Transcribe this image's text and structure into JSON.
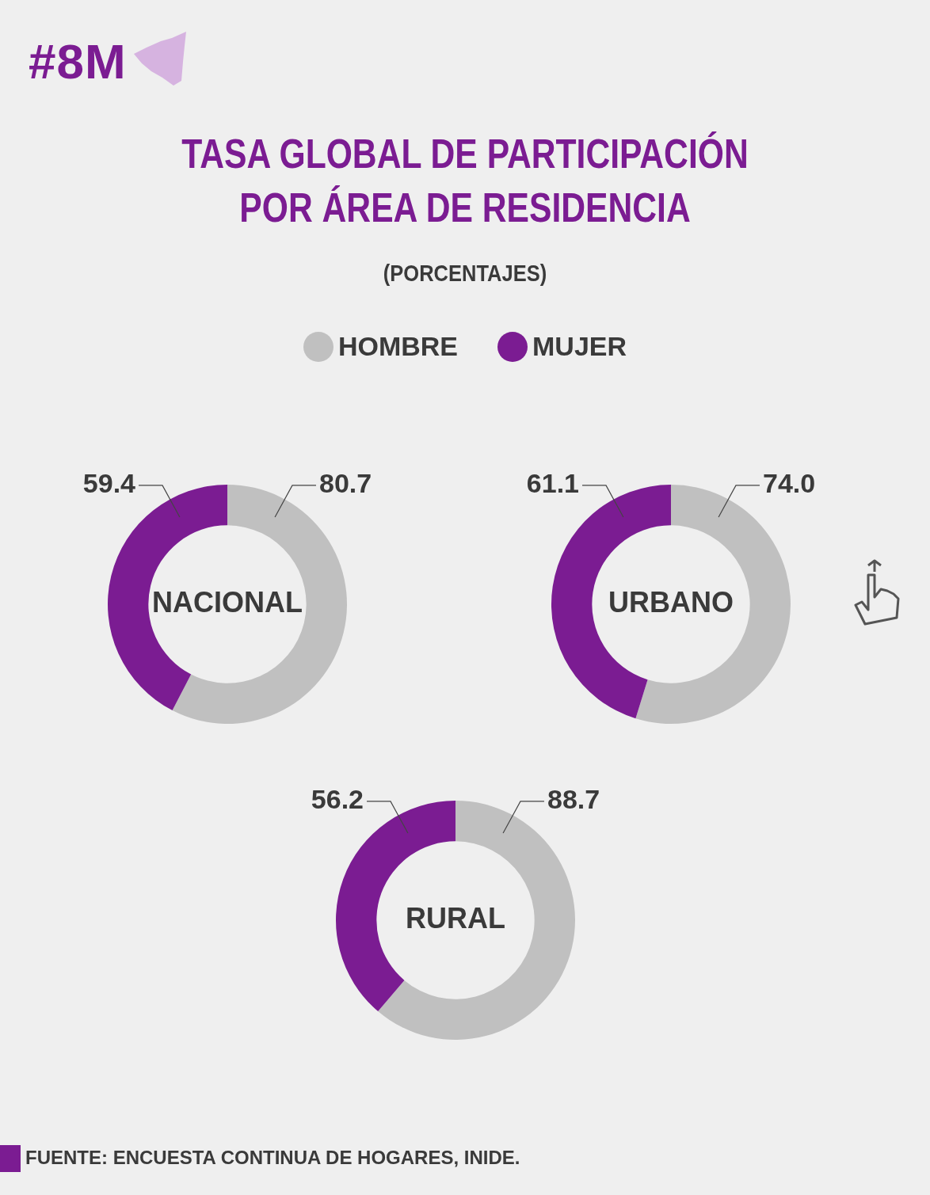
{
  "chart_data": [
    {
      "type": "donut",
      "title": "TASA GLOBAL DE PARTICIPACIÓN POR ÁREA DE RESIDENCIA",
      "subtitle": "(PORCENTAJES)",
      "annotations": [
        "#8M"
      ],
      "xlabel": "NACIONAL",
      "categories": [
        "HOMBRE",
        "MUJER"
      ],
      "values": [
        80.7,
        59.4
      ],
      "colors": [
        "#c0c0c0",
        "#7b1c92"
      ],
      "data_labels": true,
      "legend": "top"
    },
    {
      "type": "donut",
      "xlabel": "URBANO",
      "categories": [
        null,
        null
      ],
      "values": [
        74.0,
        61.1
      ],
      "value_labels": [
        "74.0",
        "61.1"
      ],
      "colors": [
        "#c0c0c0",
        "#7b1c92"
      ]
    },
    {
      "type": "donut",
      "xlabel": "RURAL",
      "categories": [
        null,
        null
      ],
      "values": [
        88.7,
        56.2
      ],
      "colors": [
        "#c0c0c0",
        "#7b1c92"
      ],
      "data_labels": true,
      "annotations": [
        "FUENTE: ENCUESTA CONTINUA DE HOGARES, INIDE."
      ]
    }
  ]
}
